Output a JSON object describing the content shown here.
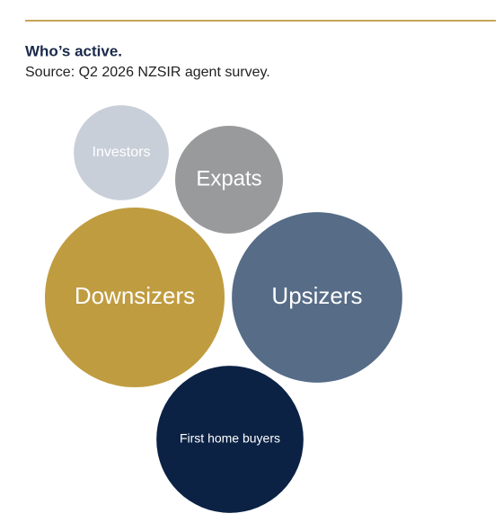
{
  "chart_data": {
    "type": "bubble",
    "title": "Who’s active.",
    "subtitle": "Source: Q2 2026 NZSIR agent survey.",
    "categories": [
      "Investors",
      "Expats",
      "Downsizers",
      "Upsizers",
      "First home buyers"
    ],
    "values": [
      28,
      36,
      100,
      90,
      67
    ],
    "colors": [
      "#c9cfd9",
      "#999a9b",
      "#c09c40",
      "#566c87",
      "#0b2245"
    ]
  }
}
